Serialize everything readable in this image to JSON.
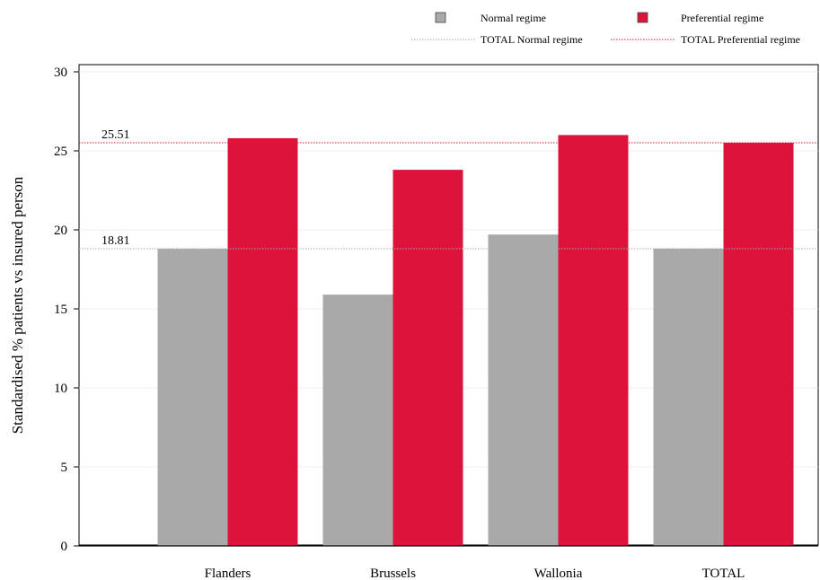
{
  "chart_data": {
    "type": "bar",
    "title": "",
    "xlabel": "",
    "ylabel": "Standardised % patients vs insured person",
    "ylim": [
      0,
      30
    ],
    "yticks": [
      0,
      5,
      10,
      15,
      20,
      25,
      30
    ],
    "grid": true,
    "legend_position": "top-right",
    "categories": [
      "Flanders",
      "Brussels",
      "Wallonia",
      "TOTAL"
    ],
    "series": [
      {
        "name": "Normal regime",
        "color": "#a9a9a9",
        "values": [
          18.8,
          15.9,
          19.7,
          18.81
        ]
      },
      {
        "name": "Preferential regime",
        "color": "#dc143c",
        "values": [
          25.8,
          23.8,
          26.0,
          25.51
        ]
      }
    ],
    "reference_lines": [
      {
        "name": "TOTAL Normal regime",
        "value": 18.81,
        "label": "18.81",
        "color": "#a9a9a9"
      },
      {
        "name": "TOTAL Preferential regime",
        "value": 25.51,
        "label": "25.51",
        "color": "#dc143c"
      }
    ]
  }
}
